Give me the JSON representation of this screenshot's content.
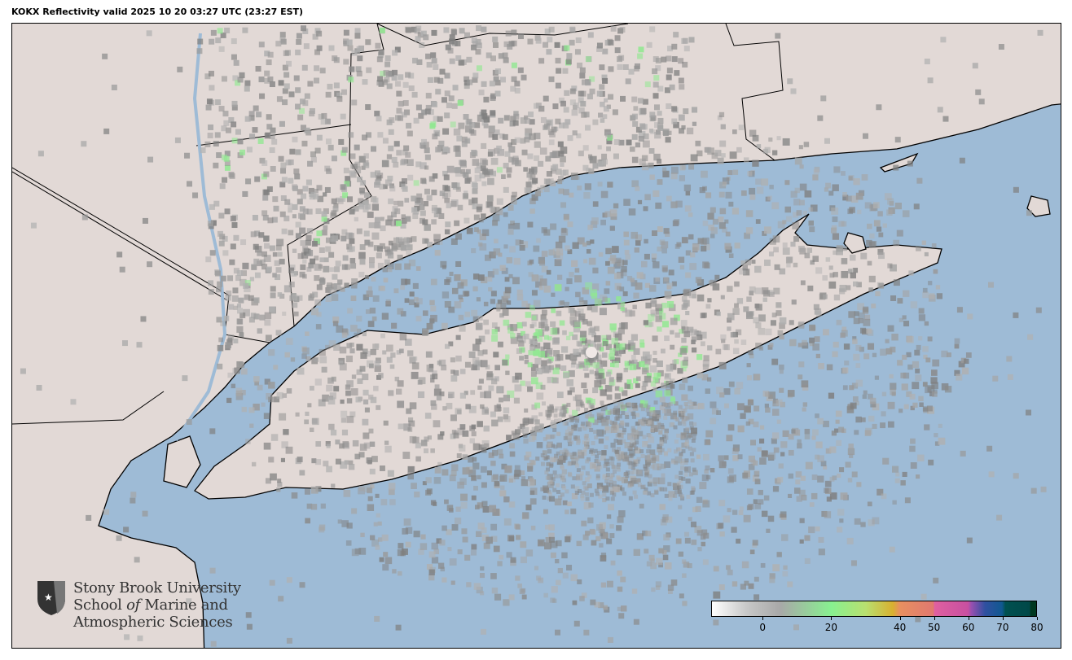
{
  "title": "KOKX Reflectivity valid 2025 10 20 03:27 UTC (23:27 EST)",
  "colors": {
    "land": "#e2d9d6",
    "water": "#9ebbd6",
    "border": "#000000"
  },
  "radar": {
    "site": "KOKX"
  },
  "logo": {
    "icon": "shield-star-icon",
    "line1": "Stony Brook University",
    "line2a": "School ",
    "line2b": "of",
    "line2c": " Marine and",
    "line3": "Atmospheric Sciences"
  },
  "colorbar": {
    "range": [
      -15,
      80
    ],
    "ticks": [
      {
        "v": 0,
        "label": "0"
      },
      {
        "v": 20,
        "label": "20"
      },
      {
        "v": 40,
        "label": "40"
      },
      {
        "v": 50,
        "label": "50"
      },
      {
        "v": 60,
        "label": "60"
      },
      {
        "v": 70,
        "label": "70"
      },
      {
        "v": 80,
        "label": "80"
      }
    ],
    "stops": [
      [
        -15,
        "#ffffff"
      ],
      [
        -5,
        "#c8c8c8"
      ],
      [
        5,
        "#a8a8a8"
      ],
      [
        20,
        "#88f090"
      ],
      [
        30,
        "#b8e070"
      ],
      [
        38,
        "#d8b030"
      ],
      [
        40,
        "#e89060"
      ],
      [
        50,
        "#e07870"
      ],
      [
        50.01,
        "#e060a0"
      ],
      [
        60,
        "#c850a0"
      ],
      [
        61,
        "#9850b0"
      ],
      [
        65,
        "#3050a0"
      ],
      [
        70,
        "#105890"
      ],
      [
        71,
        "#005050"
      ],
      [
        78,
        "#004848"
      ],
      [
        78.5,
        "#003820"
      ],
      [
        80,
        "#003820"
      ]
    ]
  }
}
